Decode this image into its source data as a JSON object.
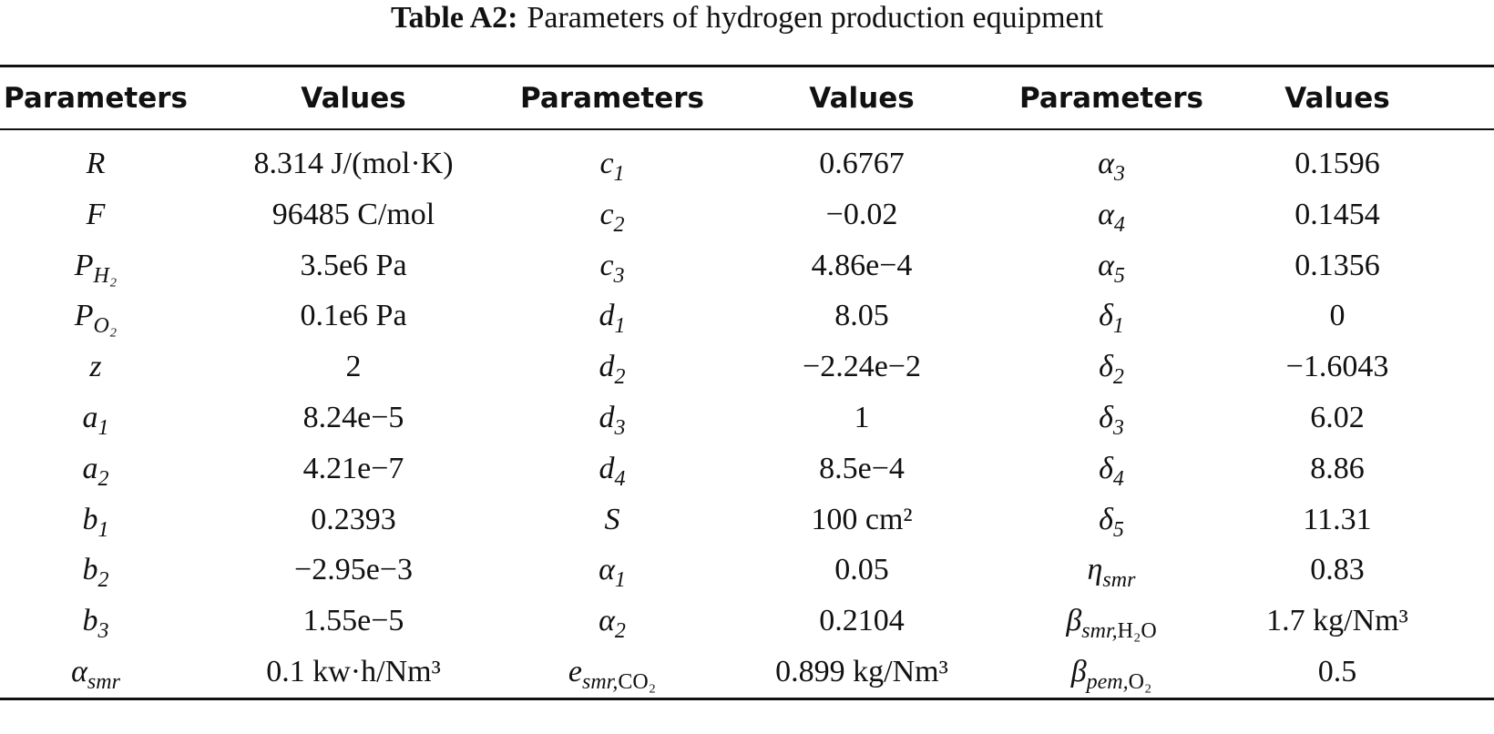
{
  "header": {
    "label": "Table A2:",
    "title": "Parameters of hydrogen production equipment"
  },
  "table": {
    "columns": [
      "Parameters",
      "Values",
      "Parameters",
      "Values",
      "Parameters",
      "Values"
    ],
    "rows": [
      [
        {
          "symbol": "R"
        },
        "8.314 J/(mol·K)",
        {
          "symbol": "c",
          "sub": "1"
        },
        "0.6767",
        {
          "symbol": "α",
          "sub": "3"
        },
        "0.1596"
      ],
      [
        {
          "symbol": "F"
        },
        "96485 C/mol",
        {
          "symbol": "c",
          "sub": "2"
        },
        "−0.02",
        {
          "symbol": "α",
          "sub": "4"
        },
        "0.1454"
      ],
      [
        {
          "symbol": "P",
          "sub": "H₂"
        },
        "3.5e6 Pa",
        {
          "symbol": "c",
          "sub": "3"
        },
        "4.86e−4",
        {
          "symbol": "α",
          "sub": "5"
        },
        "0.1356"
      ],
      [
        {
          "symbol": "P",
          "sub": "O₂"
        },
        "0.1e6 Pa",
        {
          "symbol": "d",
          "sub": "1"
        },
        "8.05",
        {
          "symbol": "δ",
          "sub": "1"
        },
        "0"
      ],
      [
        {
          "symbol": "z"
        },
        "2",
        {
          "symbol": "d",
          "sub": "2"
        },
        "−2.24e−2",
        {
          "symbol": "δ",
          "sub": "2"
        },
        "−1.6043"
      ],
      [
        {
          "symbol": "a",
          "sub": "1"
        },
        "8.24e−5",
        {
          "symbol": "d",
          "sub": "3"
        },
        "1",
        {
          "symbol": "δ",
          "sub": "3"
        },
        "6.02"
      ],
      [
        {
          "symbol": "a",
          "sub": "2"
        },
        "4.21e−7",
        {
          "symbol": "d",
          "sub": "4"
        },
        "8.5e−4",
        {
          "symbol": "δ",
          "sub": "4"
        },
        "8.86"
      ],
      [
        {
          "symbol": "b",
          "sub": "1"
        },
        "0.2393",
        {
          "symbol": "S"
        },
        "100 cm²",
        {
          "symbol": "δ",
          "sub": "5"
        },
        "11.31"
      ],
      [
        {
          "symbol": "b",
          "sub": "2"
        },
        "−2.95e−3",
        {
          "symbol": "α",
          "sub": "1"
        },
        "0.05",
        {
          "symbol": "η",
          "sub": "smr"
        },
        "0.83"
      ],
      [
        {
          "symbol": "b",
          "sub": "3"
        },
        "1.55e−5",
        {
          "symbol": "α",
          "sub": "2"
        },
        "0.2104",
        {
          "symbol": "β",
          "sub": "smr,",
          "sub_roman": "H₂O"
        },
        "1.7 kg/Nm³"
      ],
      [
        {
          "symbol": "α",
          "sub": "smr"
        },
        "0.1 kw·h/Nm³",
        {
          "symbol": "e",
          "sub": "smr,",
          "sub_roman": "CO₂"
        },
        "0.899 kg/Nm³",
        {
          "symbol": "β",
          "sub": "pem,",
          "sub_roman": "O₂"
        },
        "0.5"
      ]
    ]
  }
}
